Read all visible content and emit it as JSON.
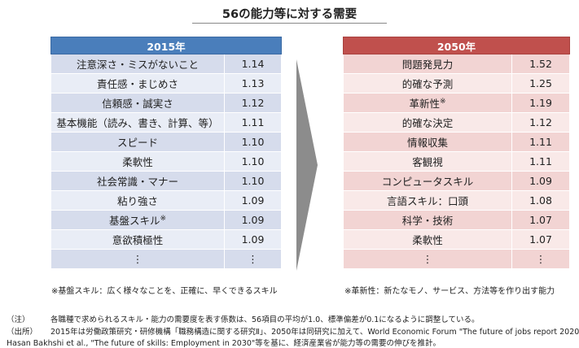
{
  "title": "56の能力等に対する需要",
  "left": {
    "header": "2015年",
    "rows": [
      {
        "name": "注意深さ・ミスがないこと",
        "value": "1.14"
      },
      {
        "name": "責任感・まじめさ",
        "value": "1.13"
      },
      {
        "name": "信頼感・誠実さ",
        "value": "1.12"
      },
      {
        "name": "基本機能（読み、書き、計算、等）",
        "value": "1.11"
      },
      {
        "name": "スピード",
        "value": "1.10"
      },
      {
        "name": "柔軟性",
        "value": "1.10"
      },
      {
        "name": "社会常識・マナー",
        "value": "1.10"
      },
      {
        "name": "粘り強さ",
        "value": "1.09"
      },
      {
        "name": "基盤スキル",
        "sup": "※",
        "value": "1.09"
      },
      {
        "name": "意欲積極性",
        "value": "1.09"
      },
      {
        "name": "⋮",
        "value": "⋮"
      }
    ],
    "note": "※基盤スキル：広く様々なことを、正確に、早くできるスキル"
  },
  "right": {
    "header": "2050年",
    "rows": [
      {
        "name": "問題発見力",
        "value": "1.52"
      },
      {
        "name": "的確な予測",
        "value": "1.25"
      },
      {
        "name": "革新性",
        "sup": "※",
        "value": "1.19"
      },
      {
        "name": "的確な決定",
        "value": "1.12"
      },
      {
        "name": "情報収集",
        "value": "1.11"
      },
      {
        "name": "客観視",
        "value": "1.11"
      },
      {
        "name": "コンピュータスキル",
        "value": "1.09"
      },
      {
        "name": "言語スキル：口頭",
        "value": "1.08"
      },
      {
        "name": "科学・技術",
        "value": "1.07"
      },
      {
        "name": "柔軟性",
        "value": "1.07"
      },
      {
        "name": "⋮",
        "value": "⋮"
      }
    ],
    "note": "※革新性：新たなモノ、サービス、方法等を作り出す能力"
  },
  "footnotes": {
    "note_label": "（注）",
    "note_text": "各職種で求められるスキル・能力の需要度を表す係数は、56項目の平均が1.0、標準偏差が0.1になるように調整している。",
    "source_label": "（出所）",
    "source_text1": "2015年は労働政策研究・研修機構「職務構造に関する研究Ⅱ」、2050年は同研究に加えて、World Economic Forum \"The future of jobs report 2020\",",
    "source_text2": "Hasan Bakhshi et al., \"The future of skills: Employment in 2030\"等を基に、経済産業省が能力等の需要の伸びを推計。"
  },
  "colors": {
    "left_header": "#4a7ebb",
    "right_header": "#c0504d",
    "arrow": "#8c8c8c"
  }
}
